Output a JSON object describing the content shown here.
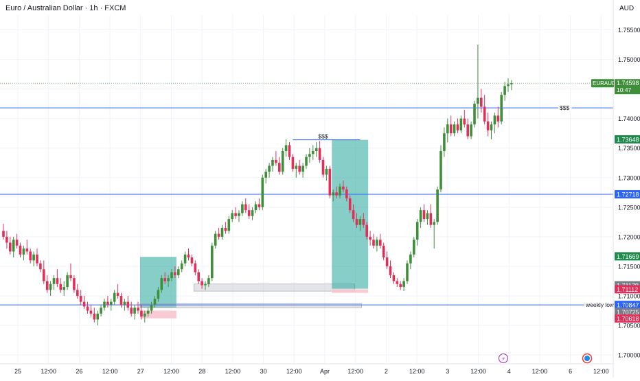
{
  "header": {
    "symbol_title": "Euro / Australian Dollar · 1h · FXCM",
    "currency": "AUD"
  },
  "colors": {
    "bull": "#26a69a",
    "bull_body": "#3f8f3a",
    "bear": "#e0305a",
    "level_line": "#2962ff",
    "zone_teal": "#26a69a",
    "zone_red": "#f7c5cf",
    "zone_gray": "#b2b5be"
  },
  "chart_data": {
    "type": "candlestick",
    "title": "Euro / Australian Dollar · 1h · FXCM",
    "y_axis": {
      "label": "AUD",
      "range": [
        1.6985,
        1.7575
      ],
      "ticks": [
        "1.75500",
        "1.75000",
        "1.74500",
        "1.74000",
        "1.73500",
        "1.73000",
        "1.72500",
        "1.72000",
        "1.71500",
        "1.71000",
        "1.70500",
        "1.70000"
      ]
    },
    "x_axis": {
      "ticks": [
        "25",
        "12:00",
        "26",
        "12:00",
        "27",
        "12:00",
        "28",
        "12:00",
        "30",
        "12:00",
        "Apr",
        "12:00",
        "2",
        "12:00",
        "3",
        "12:00",
        "4",
        "12:00",
        "6",
        "12:00"
      ]
    },
    "grid": true,
    "price_tags": [
      {
        "text": "EURAUD",
        "sub": "10:47",
        "value": "1.74598",
        "price": 1.74598,
        "kind": "current"
      },
      {
        "text": "",
        "value": "1.73648",
        "price": 1.73648,
        "kind": "green"
      },
      {
        "text": "",
        "value": "1.72718",
        "price": 1.72718,
        "kind": "blue"
      },
      {
        "text": "",
        "value": "1.71669",
        "price": 1.71669,
        "kind": "green"
      },
      {
        "text": "",
        "value": "1.71179",
        "price": 1.71179,
        "kind": "gray"
      },
      {
        "text": "",
        "value": "1.71112",
        "price": 1.71112,
        "kind": "red"
      },
      {
        "text": "",
        "value": "1.70847",
        "price": 1.70847,
        "kind": "blue"
      },
      {
        "text": "",
        "value": "1.70725",
        "price": 1.70725,
        "kind": "gray"
      },
      {
        "text": "",
        "value": "1.70618",
        "price": 1.70618,
        "kind": "red"
      }
    ],
    "levels": [
      {
        "price": 1.7418,
        "label": "$$$"
      },
      {
        "price": 1.72718,
        "label": ""
      },
      {
        "price": 1.70847,
        "label": "weekly low"
      }
    ],
    "annotations": [
      {
        "text": "$$$",
        "price": 1.7364
      }
    ],
    "series": [
      {
        "name": "EURAUD",
        "ohlc": [
          [
            1.721,
            1.7222,
            1.7195,
            1.72
          ],
          [
            1.72,
            1.721,
            1.718,
            1.719
          ],
          [
            1.719,
            1.72,
            1.717,
            1.7175
          ],
          [
            1.7175,
            1.72,
            1.7165,
            1.7195
          ],
          [
            1.7195,
            1.7205,
            1.718,
            1.7185
          ],
          [
            1.7185,
            1.719,
            1.7165,
            1.717
          ],
          [
            1.717,
            1.7185,
            1.716,
            1.718
          ],
          [
            1.718,
            1.7195,
            1.717,
            1.7175
          ],
          [
            1.7175,
            1.718,
            1.7155,
            1.716
          ],
          [
            1.716,
            1.7175,
            1.715,
            1.717
          ],
          [
            1.717,
            1.718,
            1.715,
            1.7155
          ],
          [
            1.7155,
            1.716,
            1.714,
            1.7145
          ],
          [
            1.7145,
            1.716,
            1.712,
            1.7125
          ],
          [
            1.7125,
            1.7135,
            1.7105,
            1.711
          ],
          [
            1.711,
            1.7125,
            1.71,
            1.712
          ],
          [
            1.712,
            1.7135,
            1.711,
            1.713
          ],
          [
            1.713,
            1.7145,
            1.7115,
            1.712
          ],
          [
            1.712,
            1.713,
            1.7105,
            1.711
          ],
          [
            1.711,
            1.7125,
            1.71,
            1.7115
          ],
          [
            1.7115,
            1.714,
            1.711,
            1.7135
          ],
          [
            1.7135,
            1.7155,
            1.7125,
            1.713
          ],
          [
            1.713,
            1.7135,
            1.7105,
            1.711
          ],
          [
            1.711,
            1.712,
            1.7095,
            1.71
          ],
          [
            1.71,
            1.711,
            1.7085,
            1.709
          ],
          [
            1.709,
            1.71,
            1.7078,
            1.7082
          ],
          [
            1.7082,
            1.709,
            1.707,
            1.7075
          ],
          [
            1.7075,
            1.7085,
            1.7065,
            1.707
          ],
          [
            1.707,
            1.708,
            1.7055,
            1.706
          ],
          [
            1.706,
            1.7075,
            1.705,
            1.707
          ],
          [
            1.707,
            1.7085,
            1.7065,
            1.708
          ],
          [
            1.708,
            1.7095,
            1.7075,
            1.709
          ],
          [
            1.709,
            1.71,
            1.708,
            1.7085
          ],
          [
            1.7085,
            1.7095,
            1.7075,
            1.709
          ],
          [
            1.709,
            1.711,
            1.7085,
            1.7105
          ],
          [
            1.7105,
            1.712,
            1.7095,
            1.71
          ],
          [
            1.71,
            1.7105,
            1.708,
            1.7085
          ],
          [
            1.7085,
            1.7095,
            1.7075,
            1.709
          ],
          [
            1.709,
            1.71,
            1.7075,
            1.708
          ],
          [
            1.708,
            1.709,
            1.7065,
            1.707
          ],
          [
            1.707,
            1.7085,
            1.706,
            1.708
          ],
          [
            1.708,
            1.709,
            1.707,
            1.7075
          ],
          [
            1.7075,
            1.7085,
            1.706,
            1.7065
          ],
          [
            1.7065,
            1.7075,
            1.7055,
            1.707
          ],
          [
            1.707,
            1.708,
            1.7065,
            1.7075
          ],
          [
            1.7075,
            1.709,
            1.707,
            1.7085
          ],
          [
            1.7085,
            1.71,
            1.708,
            1.7095
          ],
          [
            1.7095,
            1.7115,
            1.709,
            1.711
          ],
          [
            1.711,
            1.7135,
            1.7105,
            1.713
          ],
          [
            1.713,
            1.714,
            1.712,
            1.7125
          ],
          [
            1.7125,
            1.7135,
            1.7115,
            1.713
          ],
          [
            1.713,
            1.7145,
            1.7125,
            1.714
          ],
          [
            1.714,
            1.715,
            1.713,
            1.7135
          ],
          [
            1.7135,
            1.715,
            1.713,
            1.7145
          ],
          [
            1.7145,
            1.716,
            1.714,
            1.7155
          ],
          [
            1.7155,
            1.7175,
            1.715,
            1.717
          ],
          [
            1.717,
            1.718,
            1.716,
            1.7165
          ],
          [
            1.7165,
            1.717,
            1.715,
            1.7155
          ],
          [
            1.7155,
            1.716,
            1.7135,
            1.714
          ],
          [
            1.714,
            1.7145,
            1.712,
            1.7125
          ],
          [
            1.7125,
            1.713,
            1.7112,
            1.7118
          ],
          [
            1.7118,
            1.7125,
            1.711,
            1.712
          ],
          [
            1.712,
            1.7135,
            1.7115,
            1.713
          ],
          [
            1.713,
            1.719,
            1.7125,
            1.7185
          ],
          [
            1.7185,
            1.721,
            1.718,
            1.7205
          ],
          [
            1.7205,
            1.7215,
            1.7195,
            1.72
          ],
          [
            1.72,
            1.722,
            1.7195,
            1.7215
          ],
          [
            1.7215,
            1.7225,
            1.7205,
            1.721
          ],
          [
            1.721,
            1.7235,
            1.7205,
            1.723
          ],
          [
            1.723,
            1.7245,
            1.7225,
            1.724
          ],
          [
            1.724,
            1.725,
            1.723,
            1.7235
          ],
          [
            1.7235,
            1.7245,
            1.7225,
            1.724
          ],
          [
            1.724,
            1.726,
            1.7235,
            1.7255
          ],
          [
            1.7255,
            1.7265,
            1.724,
            1.7245
          ],
          [
            1.7245,
            1.7255,
            1.723,
            1.7235
          ],
          [
            1.7235,
            1.725,
            1.7228,
            1.7245
          ],
          [
            1.7245,
            1.726,
            1.724,
            1.7255
          ],
          [
            1.7255,
            1.7265,
            1.7245,
            1.725
          ],
          [
            1.725,
            1.7305,
            1.7245,
            1.73
          ],
          [
            1.73,
            1.7315,
            1.729,
            1.731
          ],
          [
            1.731,
            1.7325,
            1.73,
            1.732
          ],
          [
            1.732,
            1.7335,
            1.731,
            1.733
          ],
          [
            1.733,
            1.7345,
            1.732,
            1.7325
          ],
          [
            1.7325,
            1.7335,
            1.7305,
            1.731
          ],
          [
            1.731,
            1.735,
            1.7305,
            1.7345
          ],
          [
            1.7345,
            1.7365,
            1.7335,
            1.7355
          ],
          [
            1.7355,
            1.736,
            1.733,
            1.7335
          ],
          [
            1.7335,
            1.734,
            1.731,
            1.7315
          ],
          [
            1.7315,
            1.7325,
            1.73,
            1.732
          ],
          [
            1.732,
            1.733,
            1.7305,
            1.731
          ],
          [
            1.731,
            1.7325,
            1.73,
            1.732
          ],
          [
            1.732,
            1.734,
            1.7315,
            1.7335
          ],
          [
            1.7335,
            1.735,
            1.7325,
            1.734
          ],
          [
            1.734,
            1.7355,
            1.733,
            1.7345
          ],
          [
            1.7345,
            1.736,
            1.7335,
            1.735
          ],
          [
            1.735,
            1.7362,
            1.7325,
            1.733
          ],
          [
            1.733,
            1.7335,
            1.73,
            1.7305
          ],
          [
            1.7305,
            1.732,
            1.7295,
            1.7315
          ],
          [
            1.7315,
            1.732,
            1.7265,
            1.727
          ],
          [
            1.727,
            1.728,
            1.726,
            1.7275
          ],
          [
            1.7275,
            1.7285,
            1.7265,
            1.727
          ],
          [
            1.727,
            1.729,
            1.7265,
            1.7285
          ],
          [
            1.7285,
            1.7295,
            1.7275,
            1.728
          ],
          [
            1.728,
            1.7285,
            1.726,
            1.7265
          ],
          [
            1.7265,
            1.727,
            1.724,
            1.7245
          ],
          [
            1.7245,
            1.7255,
            1.7225,
            1.723
          ],
          [
            1.723,
            1.724,
            1.7215,
            1.722
          ],
          [
            1.722,
            1.7235,
            1.721,
            1.723
          ],
          [
            1.723,
            1.724,
            1.7215,
            1.722
          ],
          [
            1.722,
            1.7225,
            1.7195,
            1.72
          ],
          [
            1.72,
            1.721,
            1.7185,
            1.7195
          ],
          [
            1.7195,
            1.7205,
            1.718,
            1.7185
          ],
          [
            1.7185,
            1.72,
            1.7175,
            1.7195
          ],
          [
            1.7195,
            1.7205,
            1.718,
            1.7185
          ],
          [
            1.7185,
            1.719,
            1.716,
            1.7165
          ],
          [
            1.7165,
            1.7175,
            1.7145,
            1.715
          ],
          [
            1.715,
            1.716,
            1.713,
            1.7135
          ],
          [
            1.7135,
            1.714,
            1.712,
            1.7125
          ],
          [
            1.7125,
            1.713,
            1.7115,
            1.712
          ],
          [
            1.712,
            1.7125,
            1.711,
            1.7115
          ],
          [
            1.7115,
            1.713,
            1.7108,
            1.7125
          ],
          [
            1.7125,
            1.716,
            1.712,
            1.7155
          ],
          [
            1.7155,
            1.7175,
            1.7145,
            1.717
          ],
          [
            1.717,
            1.72,
            1.7165,
            1.7195
          ],
          [
            1.7195,
            1.723,
            1.7185,
            1.7225
          ],
          [
            1.7225,
            1.725,
            1.7215,
            1.7245
          ],
          [
            1.7245,
            1.7255,
            1.7225,
            1.723
          ],
          [
            1.723,
            1.7245,
            1.722,
            1.724
          ],
          [
            1.724,
            1.7255,
            1.7215,
            1.722
          ],
          [
            1.722,
            1.723,
            1.718,
            1.7225
          ],
          [
            1.7225,
            1.7285,
            1.722,
            1.728
          ],
          [
            1.728,
            1.7355,
            1.7275,
            1.7345
          ],
          [
            1.7345,
            1.7385,
            1.7335,
            1.7375
          ],
          [
            1.7375,
            1.74,
            1.736,
            1.739
          ],
          [
            1.739,
            1.7405,
            1.737,
            1.7375
          ],
          [
            1.7375,
            1.7395,
            1.737,
            1.739
          ],
          [
            1.739,
            1.74,
            1.7375,
            1.738
          ],
          [
            1.738,
            1.7405,
            1.7375,
            1.74
          ],
          [
            1.74,
            1.7415,
            1.7385,
            1.739
          ],
          [
            1.739,
            1.74,
            1.7365,
            1.737
          ],
          [
            1.737,
            1.7395,
            1.7365,
            1.739
          ],
          [
            1.739,
            1.743,
            1.7385,
            1.7425
          ],
          [
            1.7425,
            1.7525,
            1.74,
            1.7435
          ],
          [
            1.7435,
            1.745,
            1.741,
            1.742
          ],
          [
            1.742,
            1.744,
            1.739,
            1.7395
          ],
          [
            1.7395,
            1.741,
            1.737,
            1.738
          ],
          [
            1.738,
            1.7395,
            1.7365,
            1.739
          ],
          [
            1.739,
            1.741,
            1.7375,
            1.7405
          ],
          [
            1.7405,
            1.742,
            1.7385,
            1.7395
          ],
          [
            1.7395,
            1.7445,
            1.739,
            1.744
          ],
          [
            1.744,
            1.7462,
            1.743,
            1.7455
          ],
          [
            1.7455,
            1.7468,
            1.7445,
            1.7458
          ],
          [
            1.7458,
            1.7465,
            1.7448,
            1.746
          ]
        ]
      }
    ],
    "zones": [
      {
        "kind": "teal",
        "from_bar": 41,
        "to_bar": 51,
        "top": 1.7166,
        "bottom": 1.708
      },
      {
        "kind": "red",
        "from_bar": 41,
        "to_bar": 51,
        "top": 1.7075,
        "bottom": 1.7062
      },
      {
        "kind": "gray",
        "from_bar": 41,
        "to_bar": 106,
        "top": 1.7087,
        "bottom": 1.708
      },
      {
        "kind": "gray",
        "from_bar": 57,
        "to_bar": 104,
        "top": 1.712,
        "bottom": 1.7108
      },
      {
        "kind": "teal",
        "from_bar": 98,
        "to_bar": 108,
        "top": 1.7364,
        "bottom": 1.7112
      },
      {
        "kind": "red",
        "from_bar": 98,
        "to_bar": 108,
        "top": 1.7111,
        "bottom": 1.7105
      }
    ]
  },
  "bottom_icons": [
    {
      "name": "lightning-icon",
      "glyph": "⚡"
    },
    {
      "name": "calendar-event-icon",
      "glyph": "●"
    }
  ]
}
